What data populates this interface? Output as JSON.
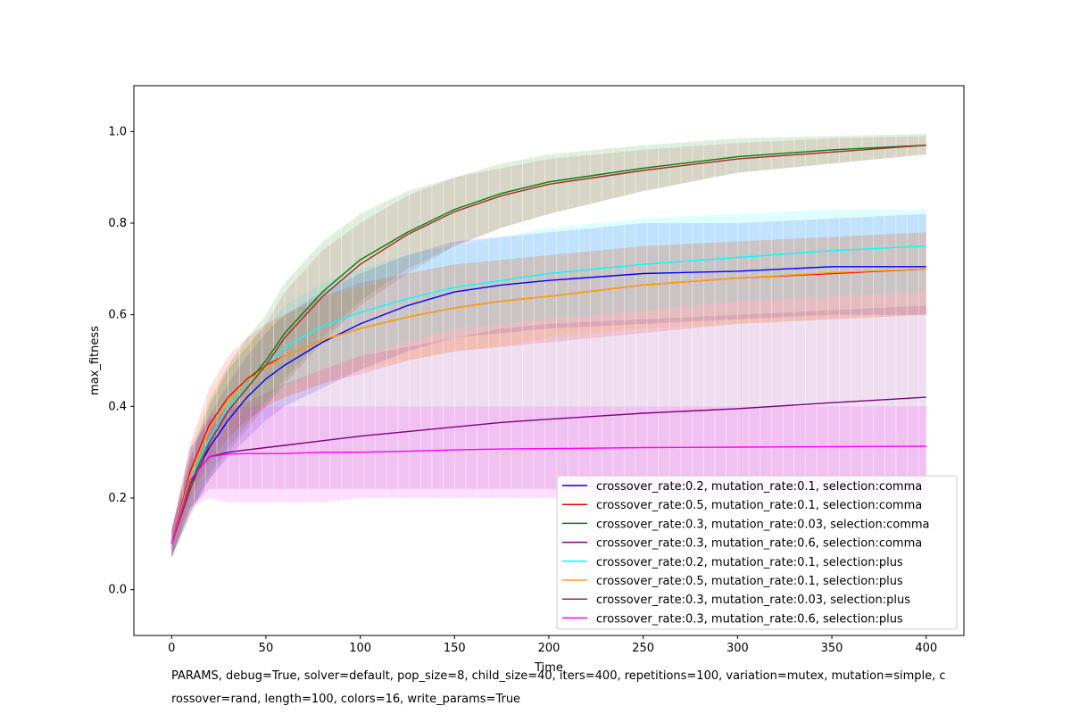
{
  "chart_data": {
    "type": "line",
    "xlabel": "Time",
    "ylabel": "max_fitness",
    "xlim": [
      -20,
      420
    ],
    "ylim": [
      -0.1,
      1.1
    ],
    "xticks": [
      0,
      50,
      100,
      150,
      200,
      250,
      300,
      350,
      400
    ],
    "yticks": [
      0.0,
      0.2,
      0.4,
      0.6,
      0.8,
      1.0
    ],
    "xtick_labels": [
      "0",
      "50",
      "100",
      "150",
      "200",
      "250",
      "300",
      "350",
      "400"
    ],
    "ytick_labels": [
      "0.0",
      "0.2",
      "0.4",
      "0.6",
      "0.8",
      "1.0"
    ],
    "x": [
      0,
      10,
      20,
      30,
      40,
      50,
      60,
      80,
      100,
      125,
      150,
      175,
      200,
      250,
      300,
      350,
      400
    ],
    "legend_position": "lower-right",
    "series": [
      {
        "name": "crossover_rate:0.2, mutation_rate:0.1, selection:comma",
        "color": "#0000ff",
        "values": [
          0.1,
          0.23,
          0.31,
          0.37,
          0.42,
          0.46,
          0.49,
          0.54,
          0.58,
          0.62,
          0.65,
          0.665,
          0.675,
          0.69,
          0.695,
          0.705,
          0.705
        ],
        "lower": [
          0.07,
          0.17,
          0.24,
          0.29,
          0.33,
          0.37,
          0.4,
          0.44,
          0.48,
          0.52,
          0.55,
          0.56,
          0.57,
          0.58,
          0.59,
          0.6,
          0.6
        ],
        "upper": [
          0.13,
          0.29,
          0.38,
          0.45,
          0.51,
          0.56,
          0.6,
          0.65,
          0.69,
          0.73,
          0.76,
          0.77,
          0.78,
          0.8,
          0.8,
          0.81,
          0.82
        ]
      },
      {
        "name": "crossover_rate:0.5, mutation_rate:0.1, selection:comma",
        "color": "#ff0000",
        "values": [
          0.1,
          0.26,
          0.36,
          0.42,
          0.46,
          0.49,
          0.51,
          0.545,
          0.57,
          0.595,
          0.615,
          0.63,
          0.64,
          0.665,
          0.68,
          0.69,
          0.7
        ],
        "lower": [
          0.07,
          0.2,
          0.28,
          0.33,
          0.37,
          0.4,
          0.42,
          0.45,
          0.47,
          0.5,
          0.52,
          0.53,
          0.54,
          0.56,
          0.58,
          0.59,
          0.6
        ],
        "upper": [
          0.13,
          0.32,
          0.44,
          0.51,
          0.55,
          0.58,
          0.6,
          0.64,
          0.67,
          0.69,
          0.71,
          0.72,
          0.73,
          0.75,
          0.76,
          0.77,
          0.78
        ]
      },
      {
        "name": "crossover_rate:0.3, mutation_rate:0.03, selection:comma",
        "color": "#008000",
        "values": [
          0.1,
          0.23,
          0.33,
          0.4,
          0.45,
          0.5,
          0.56,
          0.65,
          0.72,
          0.78,
          0.83,
          0.865,
          0.89,
          0.92,
          0.945,
          0.96,
          0.97
        ],
        "lower": [
          0.07,
          0.17,
          0.25,
          0.31,
          0.36,
          0.41,
          0.46,
          0.55,
          0.63,
          0.7,
          0.75,
          0.79,
          0.82,
          0.87,
          0.91,
          0.93,
          0.95
        ],
        "upper": [
          0.13,
          0.29,
          0.41,
          0.49,
          0.55,
          0.6,
          0.67,
          0.76,
          0.82,
          0.87,
          0.9,
          0.93,
          0.95,
          0.97,
          0.985,
          0.99,
          0.995
        ]
      },
      {
        "name": "crossover_rate:0.3, mutation_rate:0.6, selection:comma",
        "color": "#800080",
        "values": [
          0.1,
          0.24,
          0.29,
          0.3,
          0.305,
          0.31,
          0.315,
          0.325,
          0.335,
          0.345,
          0.355,
          0.365,
          0.372,
          0.385,
          0.395,
          0.408,
          0.42
        ],
        "lower": [
          0.07,
          0.18,
          0.22,
          0.22,
          0.22,
          0.22,
          0.22,
          0.22,
          0.22,
          0.22,
          0.22,
          0.22,
          0.22,
          0.22,
          0.22,
          0.22,
          0.22
        ],
        "upper": [
          0.13,
          0.31,
          0.37,
          0.39,
          0.41,
          0.43,
          0.45,
          0.48,
          0.51,
          0.53,
          0.55,
          0.57,
          0.58,
          0.59,
          0.6,
          0.61,
          0.62
        ]
      },
      {
        "name": "crossover_rate:0.2, mutation_rate:0.1, selection:plus",
        "color": "#00ffff",
        "values": [
          0.1,
          0.24,
          0.33,
          0.4,
          0.45,
          0.49,
          0.53,
          0.575,
          0.605,
          0.635,
          0.66,
          0.675,
          0.69,
          0.71,
          0.725,
          0.74,
          0.75
        ],
        "lower": [
          0.07,
          0.18,
          0.26,
          0.32,
          0.37,
          0.41,
          0.44,
          0.48,
          0.51,
          0.54,
          0.57,
          0.58,
          0.59,
          0.61,
          0.63,
          0.64,
          0.65
        ],
        "upper": [
          0.13,
          0.3,
          0.4,
          0.48,
          0.53,
          0.57,
          0.62,
          0.67,
          0.7,
          0.73,
          0.75,
          0.77,
          0.79,
          0.81,
          0.82,
          0.83,
          0.83
        ]
      },
      {
        "name": "crossover_rate:0.5, mutation_rate:0.1, selection:plus",
        "color": "#ffa500",
        "values": [
          0.1,
          0.25,
          0.35,
          0.41,
          0.455,
          0.485,
          0.51,
          0.545,
          0.57,
          0.595,
          0.615,
          0.63,
          0.64,
          0.665,
          0.68,
          0.692,
          0.7
        ],
        "lower": [
          0.07,
          0.19,
          0.27,
          0.33,
          0.37,
          0.4,
          0.42,
          0.45,
          0.48,
          0.5,
          0.52,
          0.53,
          0.55,
          0.57,
          0.58,
          0.59,
          0.6
        ],
        "upper": [
          0.13,
          0.31,
          0.42,
          0.49,
          0.54,
          0.57,
          0.6,
          0.64,
          0.66,
          0.69,
          0.71,
          0.72,
          0.73,
          0.75,
          0.76,
          0.77,
          0.78
        ]
      },
      {
        "name": "crossover_rate:0.3, mutation_rate:0.03, selection:plus",
        "color": "#a52a2a",
        "values": [
          0.1,
          0.22,
          0.32,
          0.39,
          0.44,
          0.49,
          0.55,
          0.64,
          0.71,
          0.775,
          0.825,
          0.86,
          0.885,
          0.915,
          0.94,
          0.955,
          0.97
        ],
        "lower": [
          0.07,
          0.16,
          0.24,
          0.3,
          0.35,
          0.4,
          0.45,
          0.54,
          0.62,
          0.69,
          0.75,
          0.79,
          0.82,
          0.87,
          0.91,
          0.93,
          0.95
        ],
        "upper": [
          0.13,
          0.28,
          0.4,
          0.48,
          0.53,
          0.58,
          0.65,
          0.74,
          0.8,
          0.86,
          0.9,
          0.92,
          0.94,
          0.96,
          0.975,
          0.985,
          0.99
        ]
      },
      {
        "name": "crossover_rate:0.3, mutation_rate:0.6, selection:plus",
        "color": "#ff00ff",
        "values": [
          0.1,
          0.24,
          0.29,
          0.296,
          0.297,
          0.297,
          0.297,
          0.3,
          0.3,
          0.302,
          0.305,
          0.307,
          0.308,
          0.31,
          0.311,
          0.312,
          0.313
        ],
        "lower": [
          0.07,
          0.18,
          0.2,
          0.19,
          0.19,
          0.19,
          0.19,
          0.19,
          0.2,
          0.2,
          0.2,
          0.2,
          0.2,
          0.2,
          0.2,
          0.2,
          0.2
        ],
        "upper": [
          0.13,
          0.31,
          0.38,
          0.4,
          0.4,
          0.4,
          0.4,
          0.4,
          0.4,
          0.4,
          0.4,
          0.4,
          0.4,
          0.4,
          0.4,
          0.4,
          0.4
        ]
      }
    ]
  },
  "params_line1": "PARAMS, debug=True, solver=default, pop_size=8, child_size=40, iters=400, repetitions=100, variation=mutex, mutation=simple, c",
  "params_line2": "rossover=rand, length=100, colors=16, write_params=True"
}
